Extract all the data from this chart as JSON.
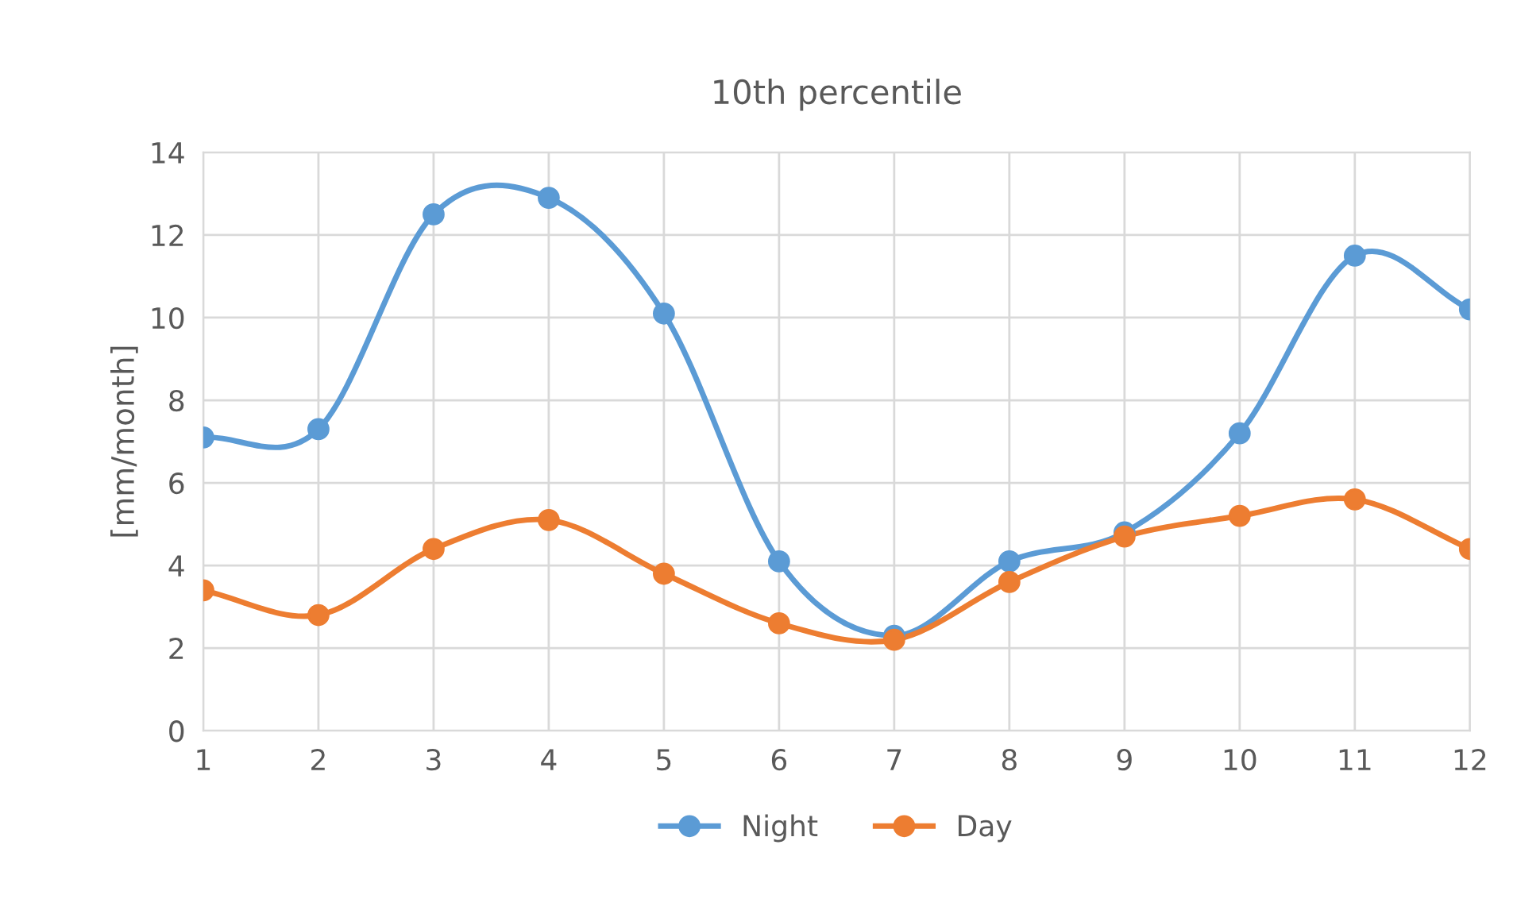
{
  "chart_data": {
    "type": "line",
    "title": "10th percentile",
    "ylabel": "[mm/month]",
    "x": [
      1,
      2,
      3,
      4,
      5,
      6,
      7,
      8,
      9,
      10,
      11,
      12
    ],
    "series": [
      {
        "name": "Night",
        "color": "#5b9bd5",
        "values": [
          7.1,
          7.3,
          12.5,
          12.9,
          10.1,
          4.1,
          2.3,
          4.1,
          4.8,
          7.2,
          11.5,
          10.2
        ]
      },
      {
        "name": "Day",
        "color": "#ed7d31",
        "values": [
          3.4,
          2.8,
          4.4,
          5.1,
          3.8,
          2.6,
          2.2,
          3.6,
          4.7,
          5.2,
          5.6,
          4.4
        ]
      }
    ],
    "xlim": [
      1,
      12
    ],
    "xticks": [
      1,
      2,
      3,
      4,
      5,
      6,
      7,
      8,
      9,
      10,
      11,
      12
    ],
    "ylim": [
      0,
      14
    ],
    "yticks": [
      0,
      2,
      4,
      6,
      8,
      10,
      12,
      14
    ],
    "grid": true,
    "legend": "bottom",
    "marker": "circle",
    "line_style": "solid"
  }
}
